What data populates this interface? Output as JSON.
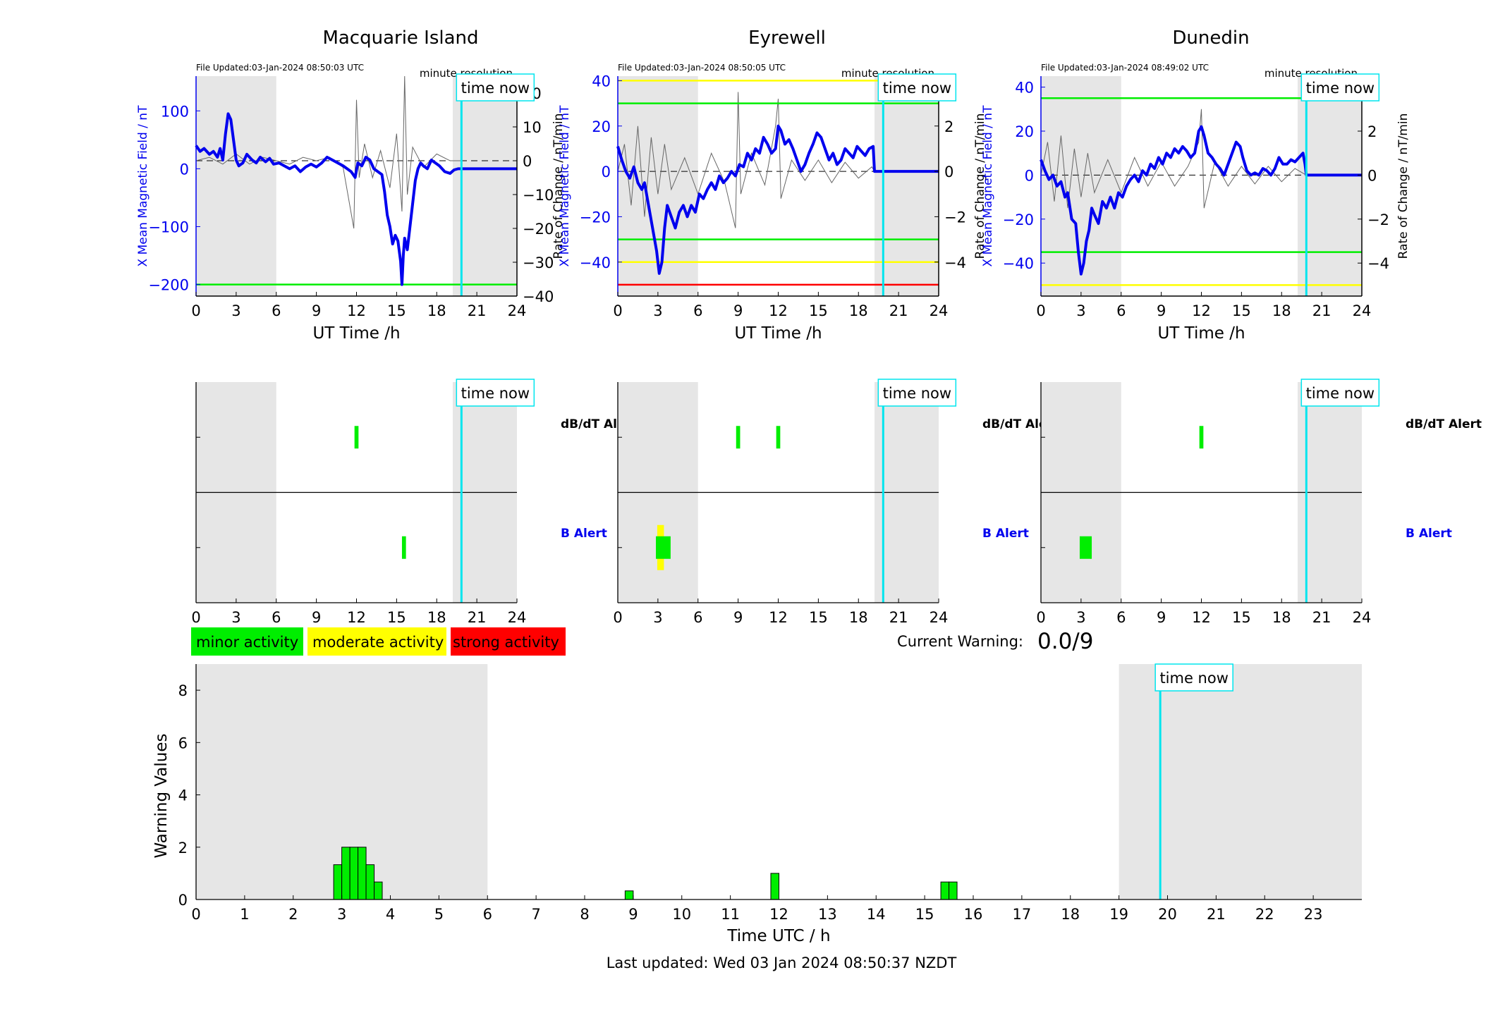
{
  "colors": {
    "shading": "#e6e6e6",
    "time_now": "#00e5ee",
    "field_trace": "#0000ee",
    "rate_trace": "#666666",
    "minor": "#00ee00",
    "moderate": "#ffff00",
    "strong": "#ff0000",
    "blue_text": "#0000ee"
  },
  "stations": [
    {
      "title": "Macquarie Island",
      "file_updated": "File Updated:03-Jan-2024 08:50:03 UTC"
    },
    {
      "title": "Eyrewell",
      "file_updated": "File Updated:03-Jan-2024 08:50:05 UTC"
    },
    {
      "title": "Dunedin",
      "file_updated": "File Updated:03-Jan-2024 08:49:02 UTC"
    }
  ],
  "labels": {
    "resolution": "minute resolution",
    "time_now": "time now",
    "x_axis": "UT Time /h",
    "y_left": "X Mean Magnetic Field / nT",
    "y_right": "Rate of Change / nT/min",
    "dbdt_alert": "dB/dT Alert",
    "b_alert": "B Alert",
    "current_warning_label": "Current Warning:",
    "current_warning_value": "0.0/9",
    "bottom_ylabel": "Warning Values",
    "bottom_xlabel": "Time UTC / h",
    "last_updated": "Last updated: Wed 03 Jan 2024 08:50:37 NZDT"
  },
  "legend": [
    {
      "label": "minor activity",
      "color": "#00ee00"
    },
    {
      "label": "moderate activity",
      "color": "#ffff00"
    },
    {
      "label": "strong activity",
      "color": "#ff0000"
    }
  ],
  "chart_data": [
    {
      "type": "line",
      "station": "Macquarie Island",
      "xlim": [
        0,
        24
      ],
      "ylim_left": [
        -220,
        160
      ],
      "ylim_right": [
        -40,
        25
      ],
      "xticks": [
        0,
        3,
        6,
        9,
        12,
        15,
        18,
        21,
        24
      ],
      "yticks_left": [
        100,
        0,
        -100,
        -200
      ],
      "yticks_right": [
        20,
        10,
        0,
        -10,
        -20,
        -30,
        -40
      ],
      "shaded_hours": [
        [
          0,
          6
        ],
        [
          19.2,
          24
        ]
      ],
      "time_now": 19.85,
      "threshold_lines": [
        {
          "value": -200,
          "color": "#00ee00"
        }
      ],
      "field_series": {
        "x": [
          0,
          0.3,
          0.6,
          1.0,
          1.3,
          1.6,
          1.8,
          2.0,
          2.2,
          2.4,
          2.6,
          2.8,
          3.0,
          3.2,
          3.5,
          3.8,
          4.2,
          4.5,
          4.8,
          5.2,
          5.5,
          5.8,
          6.2,
          6.6,
          7.0,
          7.4,
          7.8,
          8.2,
          8.6,
          9.0,
          9.4,
          9.8,
          10.2,
          10.6,
          11.0,
          11.3,
          11.6,
          11.9,
          12.1,
          12.4,
          12.7,
          13.0,
          13.3,
          13.6,
          13.9,
          14.1,
          14.3,
          14.5,
          14.7,
          14.9,
          15.1,
          15.3,
          15.4,
          15.5,
          15.6,
          15.8,
          16.0,
          16.2,
          16.4,
          16.6,
          16.8,
          17.0,
          17.3,
          17.6,
          17.9,
          18.2,
          18.6,
          19.0,
          19.3,
          19.6,
          19.85,
          24
        ],
        "y": [
          40,
          30,
          35,
          25,
          30,
          20,
          35,
          15,
          60,
          95,
          85,
          50,
          15,
          5,
          10,
          25,
          15,
          10,
          20,
          12,
          18,
          8,
          10,
          5,
          0,
          5,
          -5,
          3,
          8,
          3,
          10,
          20,
          15,
          10,
          5,
          0,
          -5,
          -15,
          10,
          5,
          20,
          15,
          0,
          -5,
          -10,
          -40,
          -80,
          -100,
          -130,
          -115,
          -125,
          -160,
          -200,
          -150,
          -120,
          -140,
          -100,
          -60,
          -20,
          0,
          10,
          5,
          0,
          15,
          10,
          5,
          -5,
          -8,
          -2,
          0,
          0,
          0
        ]
      },
      "rate_series": {
        "x": [
          0,
          1,
          2,
          3,
          4,
          5,
          6,
          7,
          8,
          9,
          10,
          11,
          11.8,
          12.0,
          12.2,
          12.6,
          13.2,
          13.8,
          14.5,
          15.0,
          15.4,
          15.6,
          15.8,
          16.2,
          17,
          18,
          19,
          19.85
        ],
        "y": [
          0,
          1,
          -1,
          2,
          -1,
          1,
          0,
          -1,
          1,
          0,
          1,
          -2,
          -20,
          18,
          -5,
          5,
          -5,
          3,
          -8,
          8,
          -15,
          25,
          -10,
          4,
          -2,
          2,
          0,
          0
        ]
      }
    },
    {
      "type": "line",
      "station": "Eyrewell",
      "xlim": [
        0,
        24
      ],
      "ylim_left": [
        -55,
        42
      ],
      "ylim_right": [
        -5.5,
        4.2
      ],
      "xticks": [
        0,
        3,
        6,
        9,
        12,
        15,
        18,
        21,
        24
      ],
      "yticks_left": [
        40,
        20,
        0,
        -20,
        -40
      ],
      "yticks_right": [
        4,
        2,
        0,
        -2,
        -4
      ],
      "shaded_hours": [
        [
          0,
          6
        ],
        [
          19.2,
          24
        ]
      ],
      "time_now": 19.85,
      "threshold_lines": [
        {
          "value": 40,
          "color": "#ffff00"
        },
        {
          "value": 30,
          "color": "#00ee00"
        },
        {
          "value": -30,
          "color": "#00ee00"
        },
        {
          "value": -40,
          "color": "#ffff00"
        },
        {
          "value": -50,
          "color": "#ff0000"
        }
      ],
      "field_series": {
        "x": [
          0,
          0.3,
          0.6,
          0.9,
          1.2,
          1.5,
          1.8,
          2.0,
          2.3,
          2.6,
          2.9,
          3.1,
          3.3,
          3.5,
          3.7,
          4.0,
          4.3,
          4.6,
          4.9,
          5.2,
          5.5,
          5.8,
          6.1,
          6.4,
          6.7,
          7.0,
          7.3,
          7.6,
          7.9,
          8.2,
          8.5,
          8.8,
          9.1,
          9.4,
          9.7,
          10.0,
          10.3,
          10.6,
          10.9,
          11.2,
          11.5,
          11.8,
          12.0,
          12.2,
          12.5,
          12.8,
          13.1,
          13.4,
          13.7,
          14.0,
          14.3,
          14.6,
          14.9,
          15.2,
          15.5,
          15.8,
          16.1,
          16.4,
          16.7,
          17.0,
          17.3,
          17.6,
          17.9,
          18.2,
          18.5,
          18.8,
          19.1,
          19.2,
          24
        ],
        "y": [
          11,
          5,
          0,
          -3,
          2,
          -5,
          -8,
          -5,
          -15,
          -25,
          -35,
          -45,
          -40,
          -25,
          -15,
          -20,
          -25,
          -18,
          -15,
          -20,
          -15,
          -18,
          -10,
          -12,
          -8,
          -5,
          -8,
          -2,
          -5,
          -3,
          0,
          -2,
          3,
          2,
          8,
          5,
          10,
          8,
          15,
          12,
          8,
          10,
          20,
          18,
          12,
          14,
          10,
          5,
          0,
          3,
          8,
          12,
          17,
          15,
          10,
          5,
          8,
          3,
          5,
          10,
          8,
          6,
          11,
          9,
          7,
          10,
          11,
          0,
          0
        ]
      },
      "rate_series": {
        "x": [
          0,
          0.5,
          1,
          1.5,
          2,
          2.5,
          3,
          3.5,
          4,
          5,
          6,
          7,
          8,
          8.8,
          9.0,
          9.2,
          10,
          11,
          11.8,
          12.0,
          12.2,
          13,
          14,
          15,
          16,
          17,
          18,
          19,
          19.2
        ],
        "y": [
          0,
          1.2,
          -1.5,
          2,
          -2,
          1.5,
          -1,
          1.2,
          -0.8,
          0.6,
          -1,
          0.8,
          -0.5,
          -2.5,
          3.5,
          -1,
          0.8,
          -0.6,
          2,
          3.2,
          -1.2,
          0.5,
          -0.4,
          0.5,
          -0.5,
          0.4,
          -0.3,
          0.2,
          0
        ]
      }
    },
    {
      "type": "line",
      "station": "Dunedin",
      "xlim": [
        0,
        24
      ],
      "ylim_left": [
        -55,
        45
      ],
      "ylim_right": [
        -5.5,
        4.5
      ],
      "xticks": [
        0,
        3,
        6,
        9,
        12,
        15,
        18,
        21,
        24
      ],
      "yticks_left": [
        40,
        20,
        0,
        -20,
        -40
      ],
      "yticks_right": [
        4,
        2,
        0,
        -2,
        -4
      ],
      "shaded_hours": [
        [
          0,
          6
        ],
        [
          19.2,
          24
        ]
      ],
      "time_now": 19.85,
      "threshold_lines": [
        {
          "value": 35,
          "color": "#00ee00"
        },
        {
          "value": -35,
          "color": "#00ee00"
        },
        {
          "value": -50,
          "color": "#ffff00"
        }
      ],
      "field_series": {
        "x": [
          0,
          0.3,
          0.6,
          0.9,
          1.2,
          1.5,
          1.8,
          2.0,
          2.3,
          2.6,
          2.8,
          3.0,
          3.2,
          3.4,
          3.6,
          3.8,
          4.0,
          4.3,
          4.6,
          4.9,
          5.2,
          5.5,
          5.8,
          6.1,
          6.4,
          6.7,
          7.0,
          7.3,
          7.6,
          7.9,
          8.2,
          8.5,
          8.8,
          9.1,
          9.4,
          9.7,
          10.0,
          10.3,
          10.6,
          10.9,
          11.2,
          11.5,
          11.8,
          12.0,
          12.2,
          12.5,
          12.8,
          13.1,
          13.4,
          13.7,
          14.0,
          14.3,
          14.6,
          14.9,
          15.1,
          15.4,
          15.7,
          16.0,
          16.3,
          16.6,
          16.9,
          17.2,
          17.5,
          17.8,
          18.1,
          18.4,
          18.7,
          19.0,
          19.3,
          19.6,
          19.75,
          19.85,
          24
        ],
        "y": [
          7,
          2,
          -2,
          0,
          -5,
          -3,
          -10,
          -8,
          -20,
          -22,
          -35,
          -45,
          -40,
          -30,
          -25,
          -15,
          -18,
          -22,
          -12,
          -15,
          -10,
          -15,
          -8,
          -10,
          -5,
          -2,
          0,
          -3,
          2,
          0,
          5,
          3,
          8,
          5,
          10,
          8,
          12,
          10,
          13,
          11,
          8,
          10,
          20,
          22,
          18,
          10,
          8,
          5,
          3,
          0,
          5,
          10,
          15,
          13,
          8,
          2,
          0,
          1,
          0,
          3,
          2,
          0,
          3,
          8,
          5,
          5,
          7,
          6,
          8,
          10,
          5,
          0,
          0
        ]
      },
      "rate_series": {
        "x": [
          0,
          0.5,
          1,
          1.5,
          2,
          2.5,
          3,
          3.5,
          4,
          5,
          6,
          7,
          8,
          9,
          10,
          11,
          11.8,
          12.0,
          12.2,
          13,
          14,
          15,
          16,
          17,
          18,
          19,
          19.85
        ],
        "y": [
          0,
          1.5,
          -1.2,
          1.8,
          -1.5,
          1.2,
          -1,
          1,
          -0.8,
          0.7,
          -0.8,
          0.8,
          -0.5,
          0.6,
          -0.5,
          0.4,
          1.5,
          3,
          -1.5,
          0.6,
          -0.5,
          0.4,
          -0.4,
          0.4,
          -0.3,
          0.3,
          0
        ]
      }
    },
    {
      "type": "heatmap",
      "station": "Macquarie Island",
      "rows": [
        "dB/dT Alert",
        "B Alert"
      ],
      "xticks": [
        0,
        3,
        6,
        9,
        12,
        15,
        18,
        21,
        24
      ],
      "shaded_hours": [
        [
          0,
          6
        ],
        [
          19.2,
          24
        ]
      ],
      "time_now": 19.85,
      "alerts": [
        {
          "row": "dB/dT Alert",
          "start": 11.85,
          "end": 12.15,
          "level": "minor"
        },
        {
          "row": "B Alert",
          "start": 15.4,
          "end": 15.7,
          "level": "minor"
        }
      ]
    },
    {
      "type": "heatmap",
      "station": "Eyrewell",
      "rows": [
        "dB/dT Alert",
        "B Alert"
      ],
      "xticks": [
        0,
        3,
        6,
        9,
        12,
        15,
        18,
        21,
        24
      ],
      "shaded_hours": [
        [
          0,
          6
        ],
        [
          19.2,
          24
        ]
      ],
      "time_now": 19.85,
      "alerts": [
        {
          "row": "dB/dT Alert",
          "start": 8.85,
          "end": 9.15,
          "level": "minor"
        },
        {
          "row": "dB/dT Alert",
          "start": 11.85,
          "end": 12.15,
          "level": "minor"
        },
        {
          "row": "B Alert",
          "start": 2.95,
          "end": 3.45,
          "level": "moderate"
        },
        {
          "row": "B Alert",
          "start": 2.85,
          "end": 3.95,
          "level": "minor"
        }
      ]
    },
    {
      "type": "heatmap",
      "station": "Dunedin",
      "rows": [
        "dB/dT Alert",
        "B Alert"
      ],
      "xticks": [
        0,
        3,
        6,
        9,
        12,
        15,
        18,
        21,
        24
      ],
      "shaded_hours": [
        [
          0,
          6
        ],
        [
          19.2,
          24
        ]
      ],
      "time_now": 19.85,
      "alerts": [
        {
          "row": "dB/dT Alert",
          "start": 11.85,
          "end": 12.15,
          "level": "minor"
        },
        {
          "row": "B Alert",
          "start": 2.9,
          "end": 3.8,
          "level": "minor"
        }
      ]
    },
    {
      "type": "bar",
      "xlabel": "Time UTC / h",
      "ylabel": "Warning Values",
      "xlim": [
        0,
        24
      ],
      "ylim": [
        0,
        9
      ],
      "xticks": [
        0,
        1,
        2,
        3,
        4,
        5,
        6,
        7,
        8,
        9,
        10,
        11,
        12,
        13,
        14,
        15,
        16,
        17,
        18,
        19,
        20,
        21,
        22,
        23
      ],
      "yticks": [
        0,
        2,
        4,
        6,
        8
      ],
      "shaded_hours": [
        [
          0,
          6
        ],
        [
          19,
          24
        ]
      ],
      "time_now": 19.85,
      "bars": [
        {
          "start": 2.833,
          "end": 3.0,
          "value": 1.33
        },
        {
          "start": 3.0,
          "end": 3.167,
          "value": 2
        },
        {
          "start": 3.167,
          "end": 3.333,
          "value": 2
        },
        {
          "start": 3.333,
          "end": 3.5,
          "value": 2
        },
        {
          "start": 3.5,
          "end": 3.667,
          "value": 1.33
        },
        {
          "start": 3.667,
          "end": 3.833,
          "value": 0.67
        },
        {
          "start": 8.833,
          "end": 9.0,
          "value": 0.33
        },
        {
          "start": 11.833,
          "end": 12.0,
          "value": 1
        },
        {
          "start": 15.333,
          "end": 15.5,
          "value": 0.67
        },
        {
          "start": 15.5,
          "end": 15.667,
          "value": 0.67
        }
      ]
    }
  ]
}
